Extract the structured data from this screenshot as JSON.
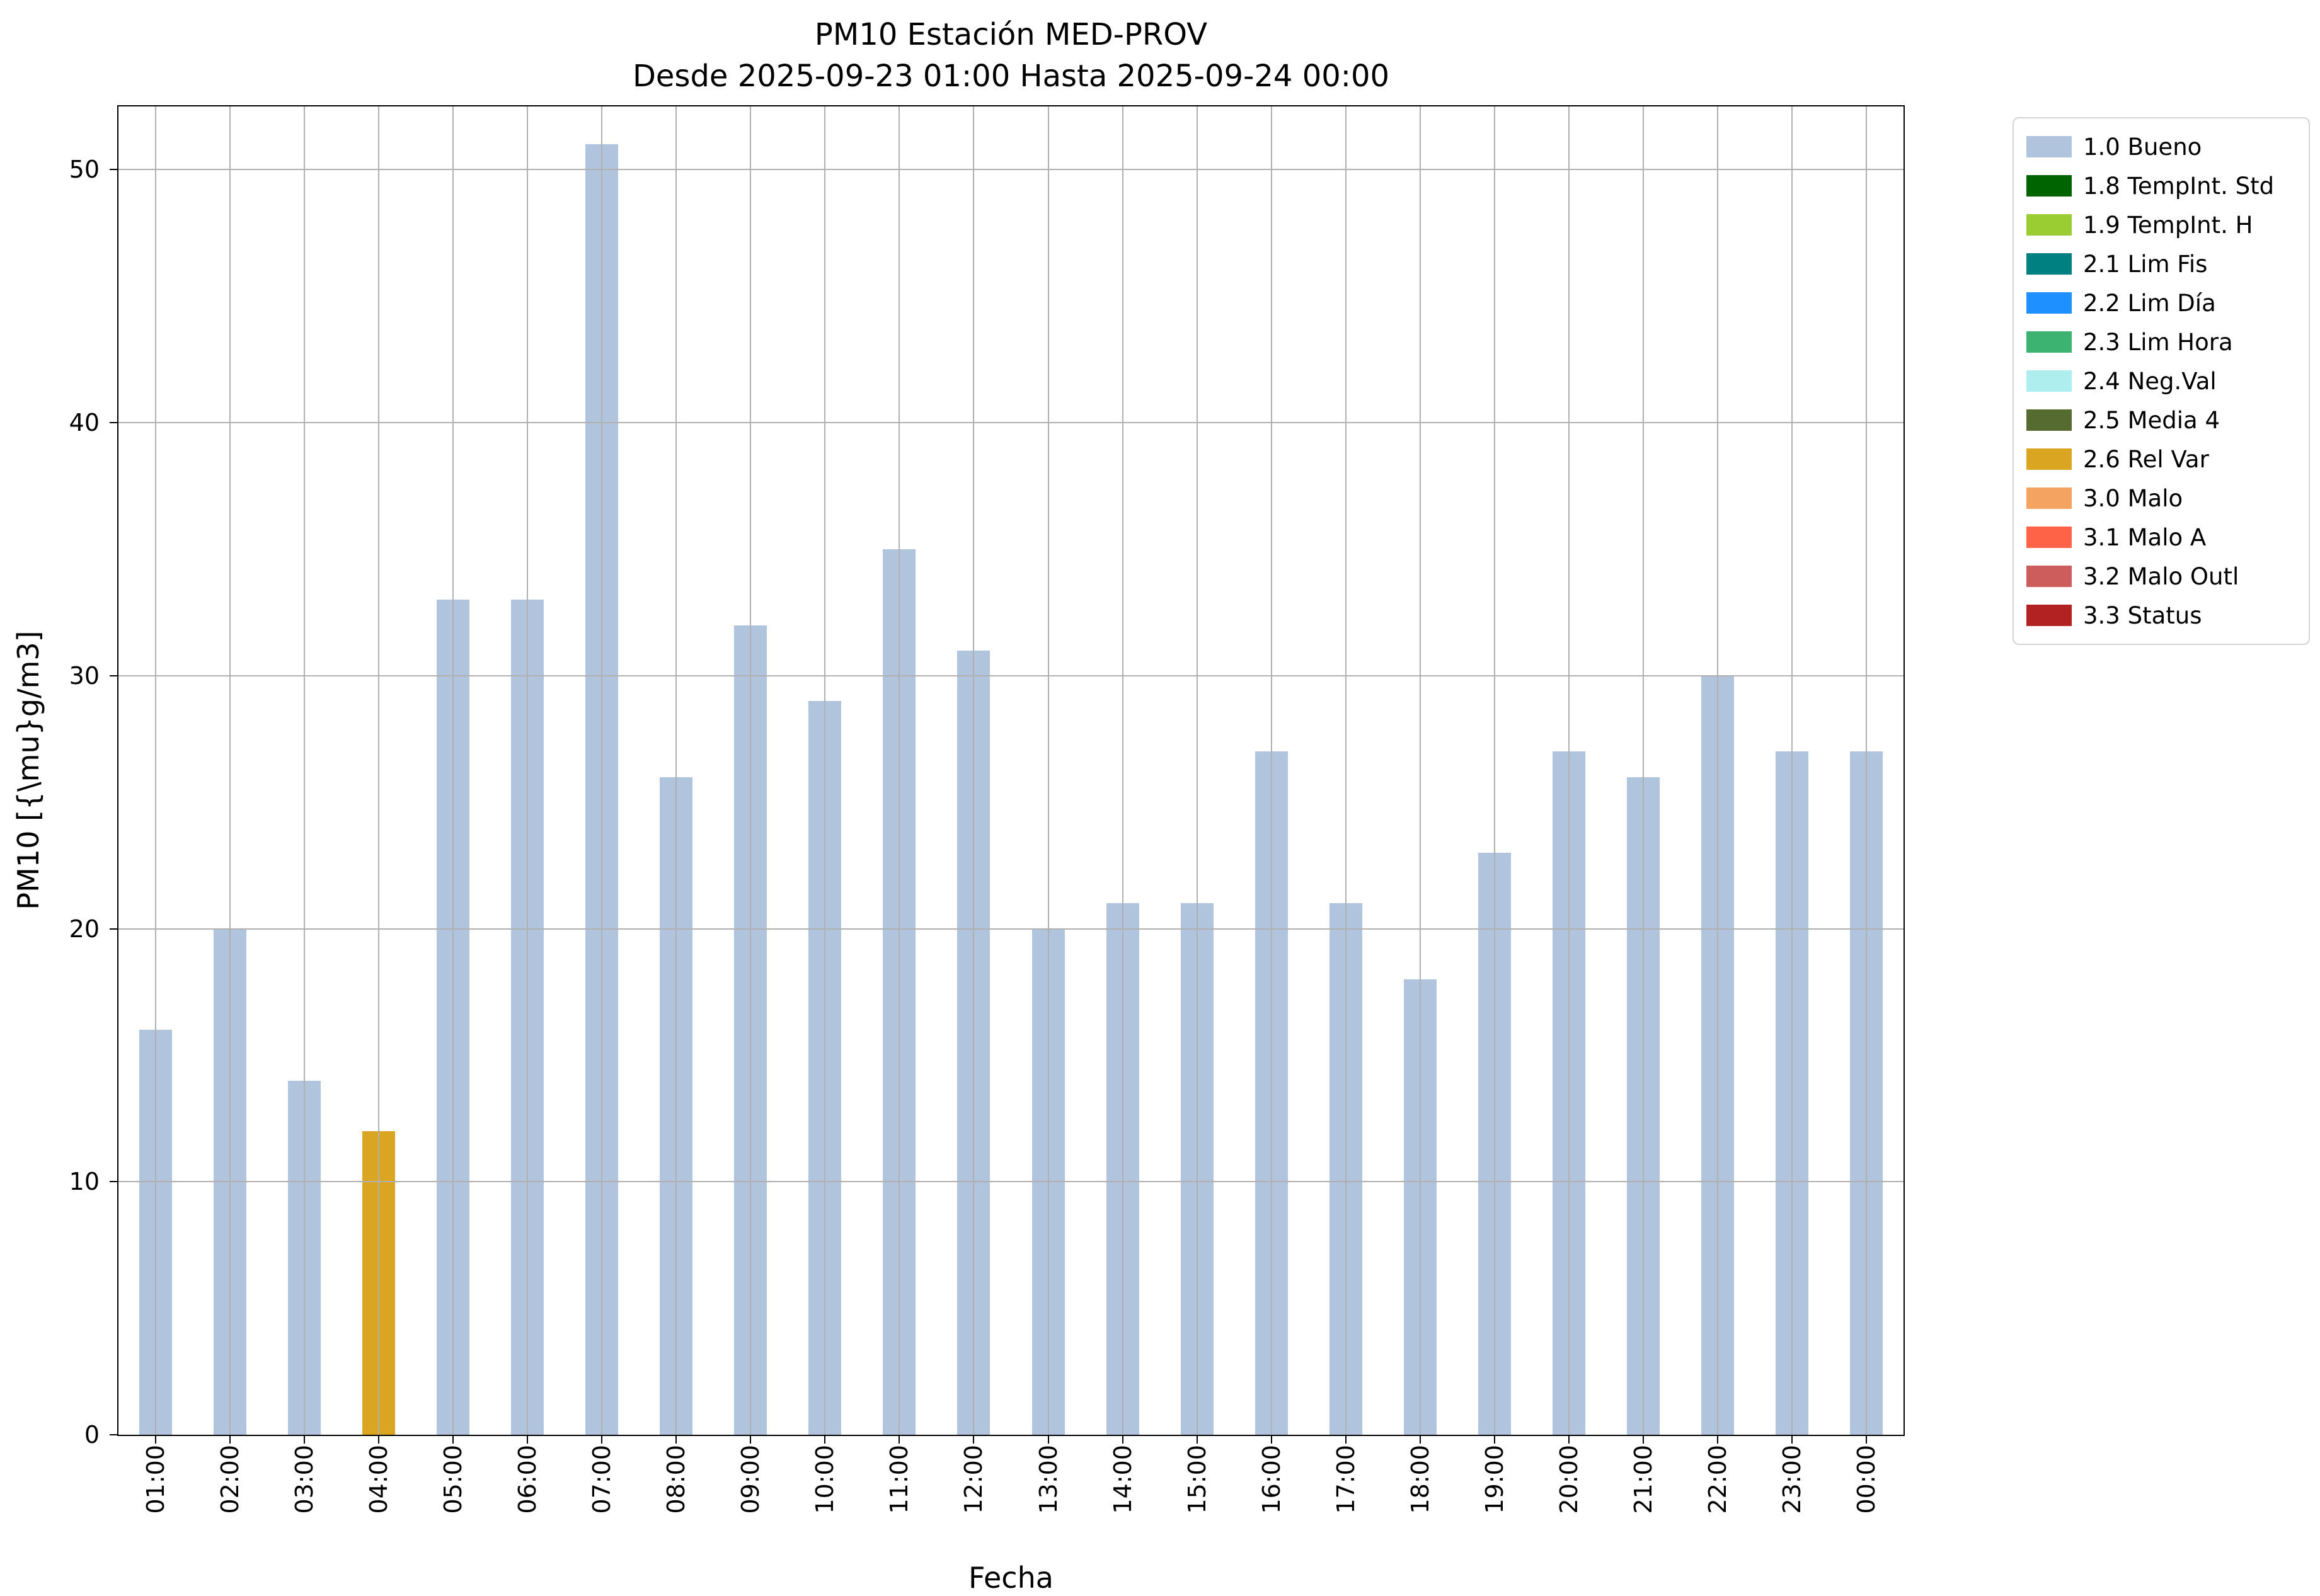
{
  "chart_data": {
    "type": "bar",
    "title": "PM10 Estación MED-PROV",
    "subtitle": "Desde 2025-09-23 01:00 Hasta 2025-09-24 00:00",
    "xlabel": "Fecha",
    "ylabel": "PM10 [{\\mu}g/m3]",
    "ylim": [
      0,
      52.5
    ],
    "yticks": [
      0,
      10,
      20,
      30,
      40,
      50
    ],
    "grid": true,
    "grid_color": "#b0b0b0",
    "legend_position": "upper-right-outside",
    "categories": [
      "01:00",
      "02:00",
      "03:00",
      "04:00",
      "05:00",
      "06:00",
      "07:00",
      "08:00",
      "09:00",
      "10:00",
      "11:00",
      "12:00",
      "13:00",
      "14:00",
      "15:00",
      "16:00",
      "17:00",
      "18:00",
      "19:00",
      "20:00",
      "21:00",
      "22:00",
      "23:00",
      "00:00"
    ],
    "values": [
      16,
      20,
      14,
      12,
      33,
      33,
      51,
      26,
      32,
      29,
      35,
      31,
      20,
      21,
      21,
      27,
      21,
      18,
      23,
      27,
      26,
      30,
      27,
      27
    ],
    "default_bar_color": "#b0c4de",
    "bar_colors": {
      "3": "#daa520"
    },
    "legend": [
      {
        "label": "1.0 Bueno",
        "color": "#b0c4de"
      },
      {
        "label": "1.8 TempInt. Std",
        "color": "#006400"
      },
      {
        "label": "1.9 TempInt. H",
        "color": "#9acd32"
      },
      {
        "label": "2.1 Lim Fis",
        "color": "#008080"
      },
      {
        "label": "2.2 Lim Día",
        "color": "#1e90ff"
      },
      {
        "label": "2.3 Lim Hora",
        "color": "#3cb371"
      },
      {
        "label": "2.4 Neg.Val",
        "color": "#afeeee"
      },
      {
        "label": "2.5 Media 4",
        "color": "#556b2f"
      },
      {
        "label": "2.6 Rel Var",
        "color": "#daa520"
      },
      {
        "label": "3.0 Malo",
        "color": "#f4a460"
      },
      {
        "label": "3.1 Malo A",
        "color": "#ff6347"
      },
      {
        "label": "3.2 Malo Outl",
        "color": "#cd5c5c"
      },
      {
        "label": "3.3 Status",
        "color": "#b22222"
      }
    ]
  }
}
